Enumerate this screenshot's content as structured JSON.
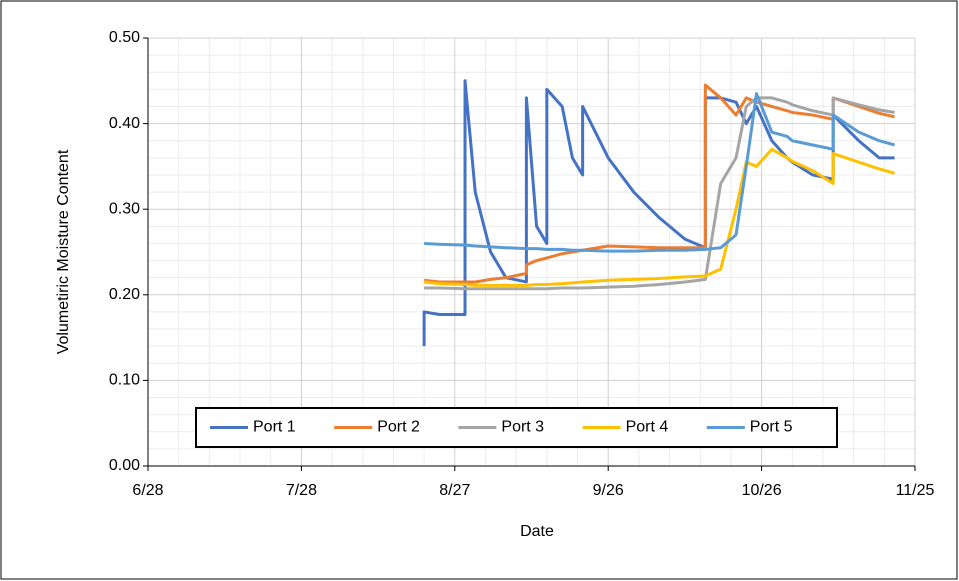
{
  "chart_data": {
    "type": "line",
    "x_label": "Date",
    "y_label": "Volumetiric Moisture Content",
    "x": [
      "8/21",
      "8/21",
      "8/24",
      "8/29",
      "8/29",
      "8/31",
      "9/3",
      "9/6",
      "9/10",
      "9/10",
      "9/12",
      "9/14",
      "9/14",
      "9/17",
      "9/19",
      "9/21",
      "9/21",
      "9/26",
      "10/1",
      "10/6",
      "10/11",
      "10/15",
      "10/15",
      "10/18",
      "10/21",
      "10/23",
      "10/25",
      "10/28",
      "10/31",
      "11/1",
      "11/5",
      "11/9",
      "11/9",
      "11/14",
      "11/18",
      "11/21"
    ],
    "series": [
      {
        "name": "Port 1",
        "color": "#4472c4",
        "values": [
          0.14,
          0.18,
          0.177,
          0.177,
          0.45,
          0.32,
          0.25,
          0.22,
          0.215,
          0.43,
          0.28,
          0.26,
          0.44,
          0.42,
          0.36,
          0.34,
          0.42,
          0.36,
          0.32,
          0.29,
          0.265,
          0.255,
          0.43,
          0.43,
          0.425,
          0.4,
          0.42,
          0.38,
          0.36,
          0.355,
          0.34,
          0.335,
          0.41,
          0.38,
          0.36,
          0.36
        ]
      },
      {
        "name": "Port 2",
        "color": "#ed7d31",
        "values": [
          0.217,
          0.217,
          0.215,
          0.215,
          0.215,
          0.215,
          0.218,
          0.22,
          0.225,
          0.235,
          0.24,
          0.243,
          0.243,
          0.248,
          0.25,
          0.252,
          0.252,
          0.257,
          0.256,
          0.255,
          0.255,
          0.255,
          0.445,
          0.43,
          0.41,
          0.43,
          0.425,
          0.42,
          0.415,
          0.413,
          0.41,
          0.405,
          0.43,
          0.42,
          0.412,
          0.408
        ]
      },
      {
        "name": "Port 3",
        "color": "#a5a5a5",
        "values": [
          0.208,
          0.208,
          0.208,
          0.207,
          0.207,
          0.207,
          0.207,
          0.207,
          0.207,
          0.207,
          0.207,
          0.207,
          0.207,
          0.208,
          0.208,
          0.208,
          0.208,
          0.209,
          0.21,
          0.212,
          0.215,
          0.218,
          0.218,
          0.33,
          0.36,
          0.42,
          0.43,
          0.43,
          0.425,
          0.422,
          0.415,
          0.41,
          0.43,
          0.422,
          0.416,
          0.413
        ]
      },
      {
        "name": "Port 4",
        "color": "#ffc000",
        "values": [
          0.215,
          0.215,
          0.213,
          0.212,
          0.212,
          0.211,
          0.211,
          0.211,
          0.211,
          0.211,
          0.212,
          0.212,
          0.212,
          0.213,
          0.214,
          0.215,
          0.215,
          0.217,
          0.218,
          0.219,
          0.221,
          0.222,
          0.222,
          0.23,
          0.3,
          0.355,
          0.35,
          0.37,
          0.36,
          0.356,
          0.345,
          0.33,
          0.365,
          0.355,
          0.347,
          0.342
        ]
      },
      {
        "name": "Port 5",
        "color": "#5b9bd5",
        "values": [
          0.26,
          0.26,
          0.259,
          0.258,
          0.258,
          0.257,
          0.256,
          0.255,
          0.254,
          0.254,
          0.254,
          0.253,
          0.253,
          0.253,
          0.252,
          0.252,
          0.252,
          0.251,
          0.251,
          0.252,
          0.252,
          0.253,
          0.253,
          0.255,
          0.27,
          0.35,
          0.435,
          0.39,
          0.385,
          0.38,
          0.375,
          0.37,
          0.41,
          0.39,
          0.38,
          0.375
        ]
      }
    ],
    "xlim": [
      "6/28",
      "11/25"
    ],
    "xticks": [
      "6/28",
      "7/28",
      "8/27",
      "9/26",
      "10/26",
      "11/25"
    ],
    "ylim": [
      0,
      0.5
    ],
    "yticks": [
      {
        "value": 0,
        "label": "0.00"
      },
      {
        "value": 0.1,
        "label": "0.10"
      },
      {
        "value": 0.2,
        "label": "0.20"
      },
      {
        "value": 0.3,
        "label": "0.30"
      },
      {
        "value": 0.4,
        "label": "0.40"
      },
      {
        "value": 0.5,
        "label": "0.50"
      }
    ],
    "grid": true,
    "minor_grid": true,
    "legend": "bottom"
  }
}
